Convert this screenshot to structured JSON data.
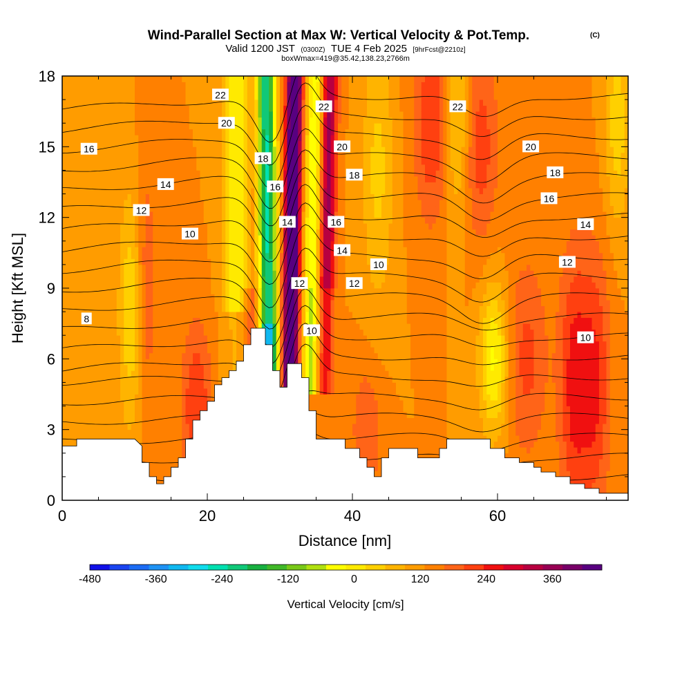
{
  "title": {
    "main": "Wind-Parallel Section at Max W: Vertical Velocity & Pot.Temp.",
    "main_suffix": "(C)",
    "valid_prefix": "Valid 1200 JST",
    "valid_zulu": "(0300Z)",
    "valid_date": "TUE 4 Feb 2025",
    "forecast_note": "[9hrFcst@2210z]",
    "box_note": "boxWmax=419@35.42,138.23,2766m"
  },
  "chart_data": {
    "type": "heatmap",
    "xlabel": "Distance [nm]",
    "ylabel": "Height [Kft MSL]",
    "xlim": [
      0,
      78
    ],
    "ylim": [
      0,
      18
    ],
    "x_ticks": [
      0,
      20,
      40,
      60
    ],
    "y_ticks": [
      0,
      3,
      6,
      9,
      12,
      15,
      18
    ],
    "x_tick_labels": [
      "0",
      "20",
      "40",
      "60"
    ],
    "y_tick_labels": [
      "0",
      "3",
      "6",
      "9",
      "12",
      "15",
      "18"
    ],
    "colorbar": {
      "title": "Vertical Velocity [cm/s]",
      "min": -480,
      "max": 420,
      "step": 30,
      "tick_values": [
        -480,
        -360,
        -240,
        -120,
        0,
        120,
        240,
        360
      ],
      "tick_labels": [
        "-480",
        "-360",
        "-240",
        "-120",
        "0",
        "120",
        "240",
        "360"
      ],
      "colors": [
        "#1010e8",
        "#1a44f0",
        "#1c6cf4",
        "#1e92f4",
        "#10b8f0",
        "#10dcec",
        "#00e0b0",
        "#10c878",
        "#18b040",
        "#40b828",
        "#78c818",
        "#b0e010",
        "#ffff00",
        "#ffea00",
        "#ffd000",
        "#ffb400",
        "#ff9c00",
        "#ff8000",
        "#ff6418",
        "#ff4010",
        "#f01010",
        "#d8002c",
        "#b80040",
        "#980054",
        "#780068",
        "#580080"
      ]
    },
    "theta_contours": {
      "label_values": [
        8,
        10,
        12,
        14,
        16,
        18,
        20,
        22
      ],
      "labels": [
        {
          "text": "22",
          "x": 13,
          "y": 17.2
        },
        {
          "text": "20",
          "x": 13.5,
          "y": 16.0
        },
        {
          "text": "16",
          "x": 2.2,
          "y": 14.9
        },
        {
          "text": "14",
          "x": 8.5,
          "y": 13.4
        },
        {
          "text": "12",
          "x": 6.5,
          "y": 12.3
        },
        {
          "text": "10",
          "x": 10.5,
          "y": 11.3
        },
        {
          "text": "8",
          "x": 2,
          "y": 7.7
        },
        {
          "text": "18",
          "x": 16.5,
          "y": 14.5
        },
        {
          "text": "16",
          "x": 17.5,
          "y": 13.3
        },
        {
          "text": "14",
          "x": 18.5,
          "y": 11.8
        },
        {
          "text": "12",
          "x": 19.5,
          "y": 9.2
        },
        {
          "text": "10",
          "x": 20.5,
          "y": 7.2
        },
        {
          "text": "22",
          "x": 21.5,
          "y": 16.7
        },
        {
          "text": "20",
          "x": 23,
          "y": 15.0
        },
        {
          "text": "18",
          "x": 24,
          "y": 13.8
        },
        {
          "text": "16",
          "x": 22.5,
          "y": 11.8
        },
        {
          "text": "14",
          "x": 23,
          "y": 10.6
        },
        {
          "text": "12",
          "x": 24,
          "y": 9.2
        },
        {
          "text": "10",
          "x": 26,
          "y": 10.0
        },
        {
          "text": "22",
          "x": 32.5,
          "y": 16.7
        },
        {
          "text": "20",
          "x": 38.5,
          "y": 15.0
        },
        {
          "text": "18",
          "x": 40.5,
          "y": 13.9
        },
        {
          "text": "16",
          "x": 40,
          "y": 12.8
        },
        {
          "text": "14",
          "x": 43,
          "y": 11.7
        },
        {
          "text": "12",
          "x": 41.5,
          "y": 10.1
        },
        {
          "text": "10",
          "x": 43,
          "y": 6.9
        }
      ]
    }
  }
}
